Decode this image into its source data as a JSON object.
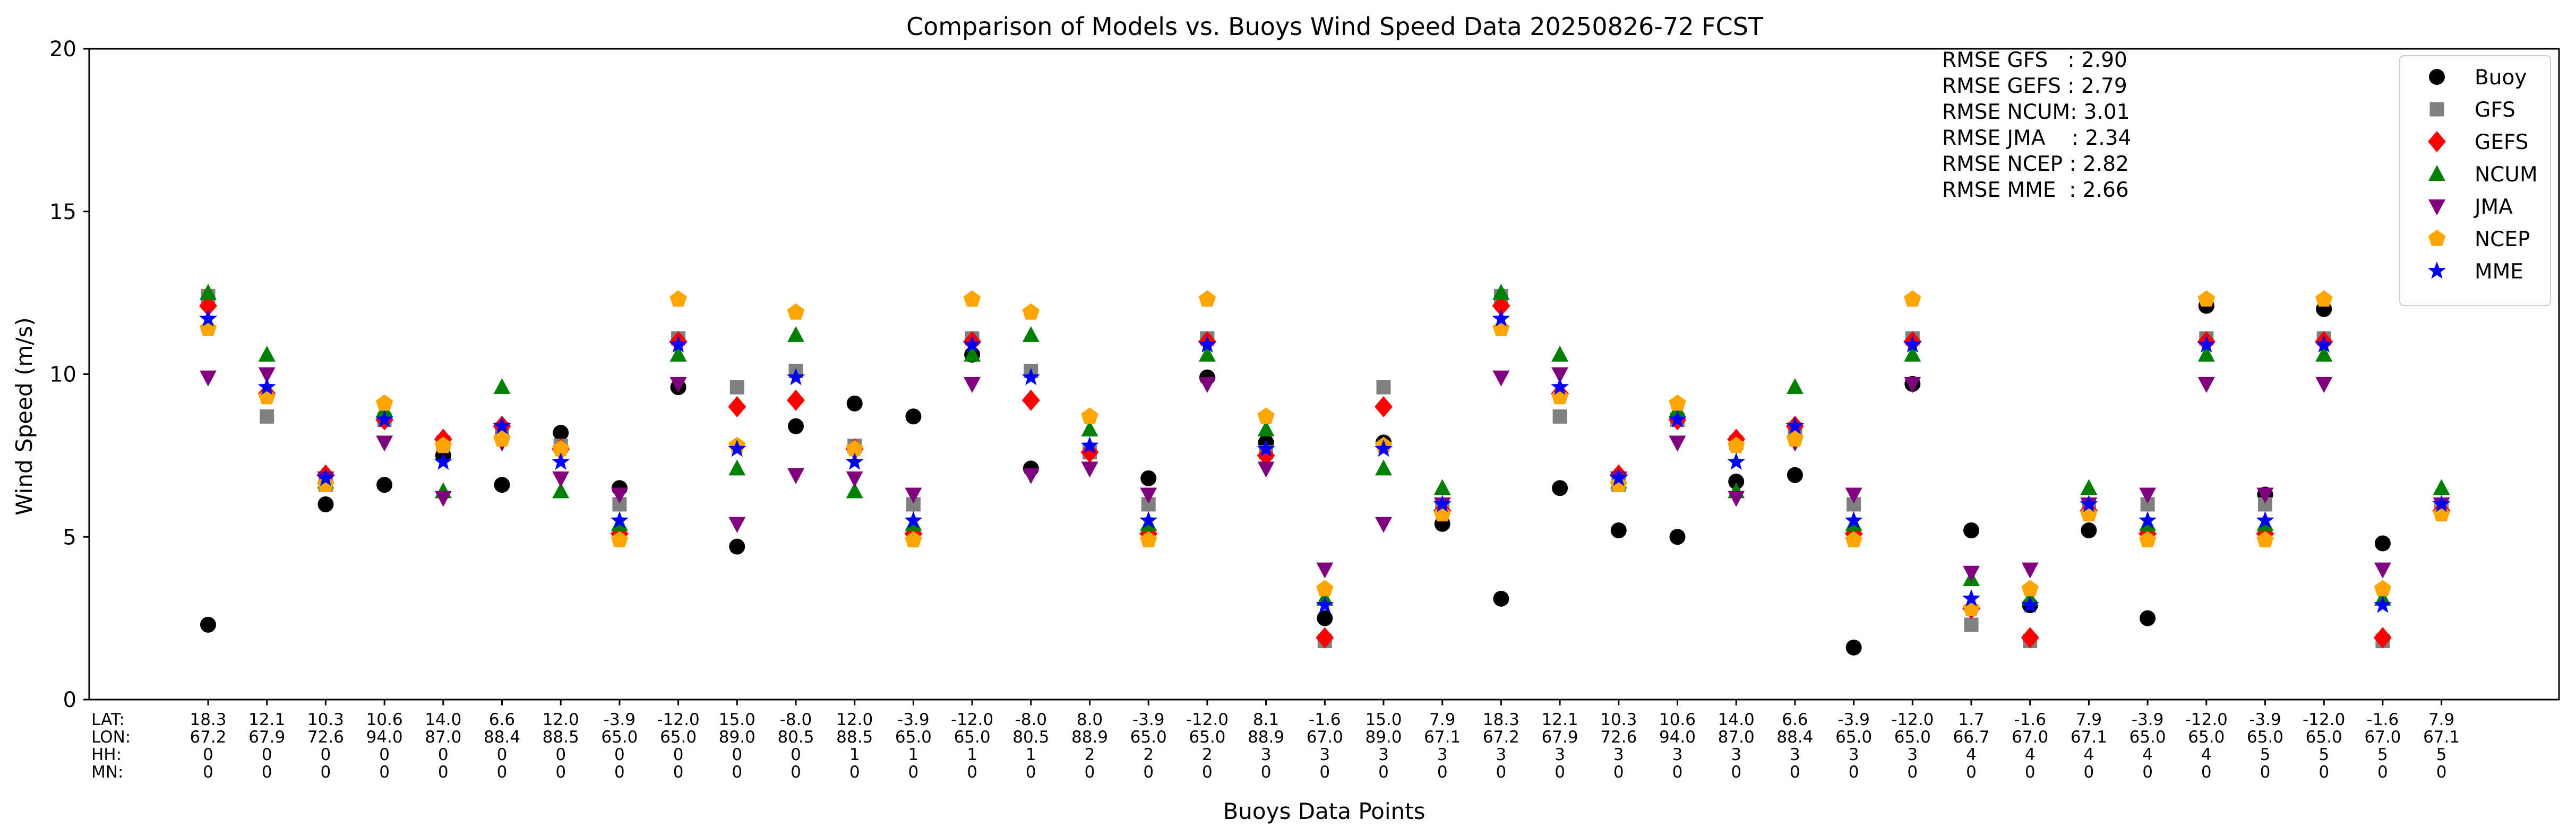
{
  "chart_data": {
    "type": "scatter",
    "title": "Comparison of Models vs. Buoys Wind Speed Data 20250826-72 FCST",
    "xlabel": "Buoys Data Points",
    "ylabel": "Wind Speed (m/s)",
    "ylim": [
      0,
      20
    ],
    "yticks": [
      "0",
      "5",
      "10",
      "15",
      "20"
    ],
    "grid": false,
    "legend_position": "top-right",
    "row_labels": [
      "LAT:",
      "LON:",
      "HH:",
      "MN:"
    ],
    "categories": [
      {
        "lat": "18.3",
        "lon": "67.2",
        "hh": "0",
        "mn": "0"
      },
      {
        "lat": "12.1",
        "lon": "67.9",
        "hh": "0",
        "mn": "0"
      },
      {
        "lat": "10.3",
        "lon": "72.6",
        "hh": "0",
        "mn": "0"
      },
      {
        "lat": "10.6",
        "lon": "94.0",
        "hh": "0",
        "mn": "0"
      },
      {
        "lat": "14.0",
        "lon": "87.0",
        "hh": "0",
        "mn": "0"
      },
      {
        "lat": "6.6",
        "lon": "88.4",
        "hh": "0",
        "mn": "0"
      },
      {
        "lat": "12.0",
        "lon": "88.5",
        "hh": "0",
        "mn": "0"
      },
      {
        "lat": "-3.9",
        "lon": "65.0",
        "hh": "0",
        "mn": "0"
      },
      {
        "lat": "-12.0",
        "lon": "65.0",
        "hh": "0",
        "mn": "0"
      },
      {
        "lat": "15.0",
        "lon": "89.0",
        "hh": "0",
        "mn": "0"
      },
      {
        "lat": "-8.0",
        "lon": "80.5",
        "hh": "0",
        "mn": "0"
      },
      {
        "lat": "12.0",
        "lon": "88.5",
        "hh": "1",
        "mn": "0"
      },
      {
        "lat": "-3.9",
        "lon": "65.0",
        "hh": "1",
        "mn": "0"
      },
      {
        "lat": "-12.0",
        "lon": "65.0",
        "hh": "1",
        "mn": "0"
      },
      {
        "lat": "-8.0",
        "lon": "80.5",
        "hh": "1",
        "mn": "0"
      },
      {
        "lat": "8.0",
        "lon": "88.9",
        "hh": "2",
        "mn": "0"
      },
      {
        "lat": "-3.9",
        "lon": "65.0",
        "hh": "2",
        "mn": "0"
      },
      {
        "lat": "-12.0",
        "lon": "65.0",
        "hh": "2",
        "mn": "0"
      },
      {
        "lat": "8.1",
        "lon": "88.9",
        "hh": "3",
        "mn": "0"
      },
      {
        "lat": "-1.6",
        "lon": "67.0",
        "hh": "3",
        "mn": "0"
      },
      {
        "lat": "15.0",
        "lon": "89.0",
        "hh": "3",
        "mn": "0"
      },
      {
        "lat": "7.9",
        "lon": "67.1",
        "hh": "3",
        "mn": "0"
      },
      {
        "lat": "18.3",
        "lon": "67.2",
        "hh": "3",
        "mn": "0"
      },
      {
        "lat": "12.1",
        "lon": "67.9",
        "hh": "3",
        "mn": "0"
      },
      {
        "lat": "10.3",
        "lon": "72.6",
        "hh": "3",
        "mn": "0"
      },
      {
        "lat": "10.6",
        "lon": "94.0",
        "hh": "3",
        "mn": "0"
      },
      {
        "lat": "14.0",
        "lon": "87.0",
        "hh": "3",
        "mn": "0"
      },
      {
        "lat": "6.6",
        "lon": "88.4",
        "hh": "3",
        "mn": "0"
      },
      {
        "lat": "-3.9",
        "lon": "65.0",
        "hh": "3",
        "mn": "0"
      },
      {
        "lat": "-12.0",
        "lon": "65.0",
        "hh": "3",
        "mn": "0"
      },
      {
        "lat": "1.7",
        "lon": "66.7",
        "hh": "4",
        "mn": "0"
      },
      {
        "lat": "-1.6",
        "lon": "67.0",
        "hh": "4",
        "mn": "0"
      },
      {
        "lat": "7.9",
        "lon": "67.1",
        "hh": "4",
        "mn": "0"
      },
      {
        "lat": "-3.9",
        "lon": "65.0",
        "hh": "4",
        "mn": "0"
      },
      {
        "lat": "-12.0",
        "lon": "65.0",
        "hh": "4",
        "mn": "0"
      },
      {
        "lat": "-3.9",
        "lon": "65.0",
        "hh": "5",
        "mn": "0"
      },
      {
        "lat": "-12.0",
        "lon": "65.0",
        "hh": "5",
        "mn": "0"
      },
      {
        "lat": "-1.6",
        "lon": "67.0",
        "hh": "5",
        "mn": "0"
      },
      {
        "lat": "7.9",
        "lon": "67.1",
        "hh": "5",
        "mn": "0"
      }
    ],
    "series": [
      {
        "name": "Buoy",
        "marker": "circle",
        "color": "#000000",
        "values": [
          2.3,
          null,
          6.0,
          6.6,
          7.5,
          6.6,
          8.2,
          6.5,
          9.6,
          4.7,
          8.4,
          9.1,
          8.7,
          10.6,
          7.1,
          null,
          6.8,
          9.9,
          7.9,
          2.5,
          7.9,
          5.4,
          3.1,
          6.5,
          5.2,
          5.0,
          6.7,
          6.9,
          1.6,
          9.7,
          5.2,
          2.9,
          5.2,
          2.5,
          12.1,
          6.3,
          12.0,
          4.8,
          null
        ]
      },
      {
        "name": "GFS",
        "marker": "square",
        "color": "#808080",
        "values": [
          12.4,
          8.7,
          6.6,
          8.6,
          7.9,
          8.3,
          7.8,
          6.0,
          11.1,
          9.6,
          10.1,
          7.8,
          6.0,
          11.1,
          10.1,
          7.6,
          6.0,
          11.1,
          7.6,
          1.8,
          9.6,
          5.9,
          12.4,
          8.7,
          6.6,
          8.6,
          7.9,
          8.3,
          6.0,
          11.1,
          2.3,
          1.8,
          5.9,
          6.0,
          11.1,
          6.0,
          11.1,
          1.8,
          5.9
        ]
      },
      {
        "name": "GEFS",
        "marker": "diamond",
        "color": "#ff0000",
        "values": [
          12.1,
          9.4,
          6.9,
          8.6,
          8.0,
          8.4,
          7.7,
          5.1,
          11.0,
          9.0,
          9.2,
          7.7,
          5.1,
          11.0,
          9.2,
          7.6,
          5.1,
          11.0,
          7.5,
          1.9,
          9.0,
          5.8,
          12.1,
          9.4,
          6.9,
          8.6,
          8.0,
          8.4,
          5.1,
          11.0,
          2.8,
          1.9,
          5.8,
          5.1,
          11.0,
          5.1,
          11.0,
          1.9,
          5.8
        ]
      },
      {
        "name": "NCUM",
        "marker": "triangle-up",
        "color": "#008000",
        "values": [
          12.5,
          10.6,
          6.7,
          8.9,
          6.4,
          9.6,
          6.4,
          5.4,
          10.6,
          7.1,
          11.2,
          6.4,
          5.4,
          10.6,
          11.2,
          8.3,
          5.4,
          10.6,
          8.3,
          3.1,
          7.1,
          6.5,
          12.5,
          10.6,
          6.7,
          8.9,
          6.4,
          9.6,
          5.4,
          10.6,
          3.7,
          3.1,
          6.5,
          5.4,
          10.6,
          5.4,
          10.6,
          3.1,
          6.5
        ]
      },
      {
        "name": "JMA",
        "marker": "triangle-down",
        "color": "#800080",
        "values": [
          9.9,
          10.0,
          6.8,
          7.9,
          6.2,
          7.9,
          6.8,
          6.3,
          9.7,
          5.4,
          6.9,
          6.8,
          6.3,
          9.7,
          6.9,
          7.1,
          6.3,
          9.7,
          7.1,
          4.0,
          5.4,
          6.0,
          9.9,
          10.0,
          6.8,
          7.9,
          6.2,
          7.9,
          6.3,
          9.7,
          3.9,
          4.0,
          6.0,
          6.3,
          9.7,
          6.3,
          9.7,
          4.0,
          6.0
        ]
      },
      {
        "name": "NCEP",
        "marker": "pentagon",
        "color": "#ffa500",
        "values": [
          11.4,
          9.3,
          6.6,
          9.1,
          7.8,
          8.0,
          7.7,
          4.9,
          12.3,
          7.8,
          11.9,
          7.7,
          4.9,
          12.3,
          11.9,
          8.7,
          4.9,
          12.3,
          8.7,
          3.4,
          7.8,
          5.7,
          11.4,
          9.3,
          6.6,
          9.1,
          7.8,
          8.0,
          4.9,
          12.3,
          2.8,
          3.4,
          5.7,
          4.9,
          12.3,
          4.9,
          12.3,
          3.4,
          5.7
        ]
      },
      {
        "name": "MME",
        "marker": "star",
        "color": "#0000ff",
        "values": [
          11.7,
          9.6,
          6.8,
          8.6,
          7.3,
          8.4,
          7.3,
          5.5,
          10.9,
          7.7,
          9.9,
          7.3,
          5.5,
          10.9,
          9.9,
          7.8,
          5.5,
          10.9,
          7.7,
          2.9,
          7.7,
          6.0,
          11.7,
          9.6,
          6.8,
          8.6,
          7.3,
          8.4,
          5.5,
          10.9,
          3.1,
          2.9,
          6.0,
          5.5,
          10.9,
          5.5,
          10.9,
          2.9,
          6.0
        ]
      }
    ],
    "annotations": [
      "RMSE GFS   : 2.90",
      "RMSE GEFS : 2.79",
      "RMSE NCUM: 3.01",
      "RMSE JMA    : 2.34",
      "RMSE NCEP : 2.82",
      "RMSE MME  : 2.66"
    ]
  }
}
